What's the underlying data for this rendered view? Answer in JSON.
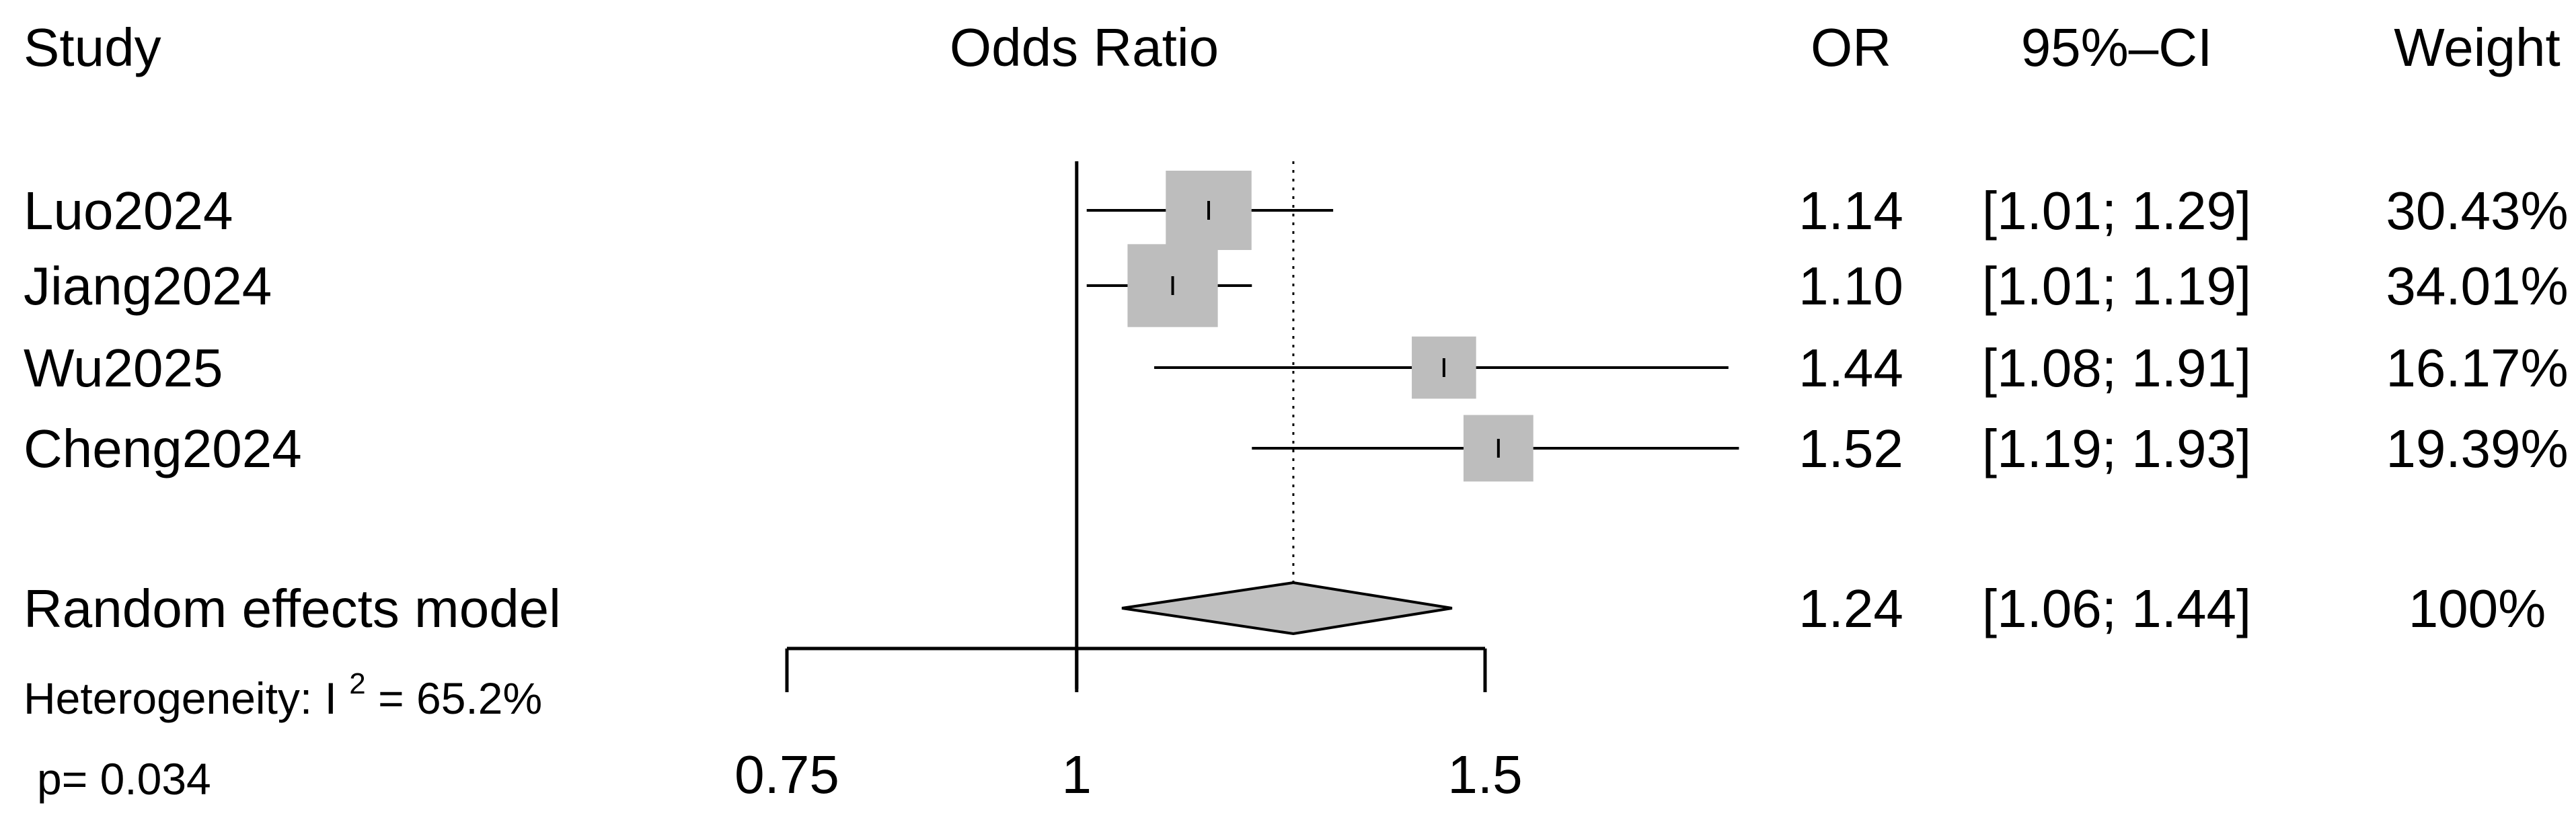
{
  "chart_data": {
    "type": "forest",
    "title": "",
    "columns": {
      "study": "Study",
      "effect": "Odds Ratio",
      "or": "OR",
      "ci": "95%–CI",
      "weight": "Weight"
    },
    "studies": [
      {
        "name": "Luo2024",
        "or": 1.14,
        "lower": 1.01,
        "upper": 1.29,
        "or_text": "1.14",
        "ci_text": "[1.01; 1.29]",
        "weight_text": "30.43%",
        "weight": 30.43
      },
      {
        "name": "Jiang2024",
        "or": 1.1,
        "lower": 1.01,
        "upper": 1.19,
        "or_text": "1.10",
        "ci_text": "[1.01; 1.19]",
        "weight_text": "34.01%",
        "weight": 34.01
      },
      {
        "name": "Wu2025",
        "or": 1.44,
        "lower": 1.08,
        "upper": 1.91,
        "or_text": "1.44",
        "ci_text": "[1.08; 1.91]",
        "weight_text": "16.17%",
        "weight": 16.17
      },
      {
        "name": "Cheng2024",
        "or": 1.52,
        "lower": 1.19,
        "upper": 1.93,
        "or_text": "1.52",
        "ci_text": "[1.19; 1.93]",
        "weight_text": "19.39%",
        "weight": 19.39
      }
    ],
    "pooled": {
      "name": "Random effects model",
      "or": 1.24,
      "lower": 1.06,
      "upper": 1.44,
      "or_text": "1.24",
      "ci_text": "[1.06; 1.44]",
      "weight_text": "100%"
    },
    "heterogeneity": {
      "label": "Heterogeneity:  I",
      "sup": "2",
      "value": " = 65.2%",
      "p_text": "p= 0.034"
    },
    "axis": {
      "scale": "log",
      "xlim": [
        0.75,
        1.5
      ],
      "ticks": [
        0.75,
        1,
        1.5
      ],
      "tick_labels": [
        "0.75",
        "1",
        "1.5"
      ],
      "null_line": 1
    },
    "colors": {
      "box": "#bdbdbd",
      "diamond": "#c0c0c0",
      "line": "#000000"
    }
  }
}
